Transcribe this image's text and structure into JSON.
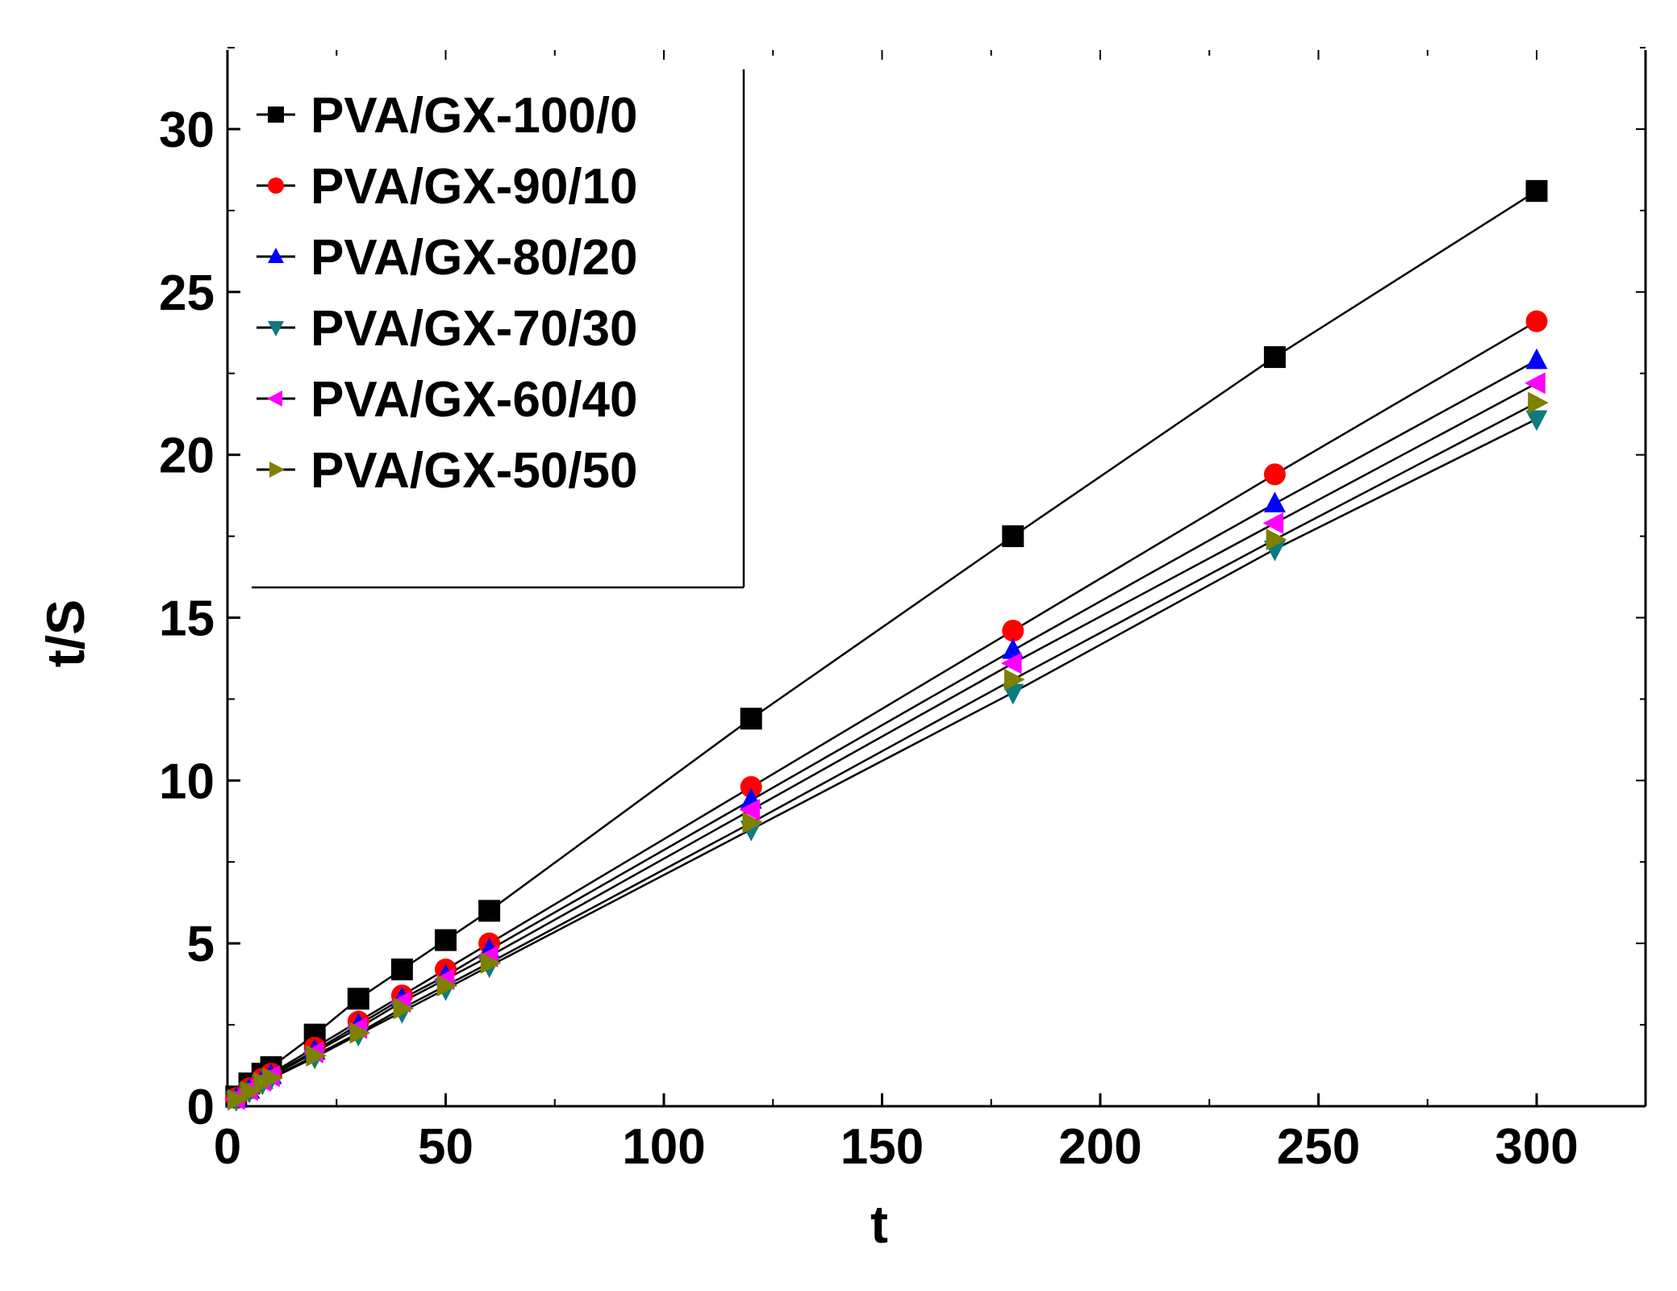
{
  "chart_data": {
    "type": "line",
    "title": "",
    "xlabel": "t",
    "ylabel": "t/S",
    "xlim": [
      0,
      325
    ],
    "ylim": [
      0,
      32.5
    ],
    "xticks": [
      0,
      50,
      100,
      150,
      200,
      250,
      300
    ],
    "yticks": [
      0,
      5,
      10,
      15,
      20,
      25,
      30
    ],
    "xtick_labels": [
      "0",
      "50",
      "100",
      "150",
      "200",
      "250",
      "300"
    ],
    "ytick_labels": [
      "0",
      "5",
      "10",
      "15",
      "20",
      "25",
      "30"
    ],
    "grid": false,
    "legend_position": "top-left",
    "x": [
      2,
      5,
      8,
      10,
      20,
      30,
      40,
      50,
      60,
      120,
      180,
      240,
      300
    ],
    "series": [
      {
        "name": "PVA/GX-100/0",
        "marker": "square",
        "color": "#000000",
        "values": [
          0.3,
          0.7,
          1.0,
          1.2,
          2.2,
          3.3,
          4.2,
          5.1,
          6.0,
          11.9,
          17.5,
          23.0,
          28.1
        ]
      },
      {
        "name": "PVA/GX-90/10",
        "marker": "circle",
        "color": "#ff0000",
        "values": [
          0.25,
          0.55,
          0.85,
          1.0,
          1.8,
          2.6,
          3.4,
          4.2,
          5.0,
          9.8,
          14.6,
          19.4,
          24.1
        ]
      },
      {
        "name": "PVA/GX-80/20",
        "marker": "triangle-up",
        "color": "#0000ff",
        "values": [
          0.22,
          0.5,
          0.8,
          0.95,
          1.7,
          2.5,
          3.3,
          4.0,
          4.8,
          9.4,
          14.0,
          18.5,
          22.9
        ]
      },
      {
        "name": "PVA/GX-70/30",
        "marker": "triangle-down",
        "color": "#0f7b80",
        "values": [
          0.2,
          0.45,
          0.7,
          0.85,
          1.5,
          2.2,
          2.9,
          3.6,
          4.3,
          8.5,
          12.7,
          17.1,
          21.1
        ]
      },
      {
        "name": "PVA/GX-60/40",
        "marker": "triangle-left",
        "color": "#ff00ff",
        "values": [
          0.22,
          0.5,
          0.78,
          0.92,
          1.65,
          2.4,
          3.2,
          3.9,
          4.6,
          9.1,
          13.6,
          17.9,
          22.2
        ]
      },
      {
        "name": "PVA/GX-50/50",
        "marker": "triangle-right",
        "color": "#7f7f00",
        "values": [
          0.2,
          0.45,
          0.72,
          0.86,
          1.55,
          2.25,
          3.0,
          3.7,
          4.4,
          8.7,
          13.1,
          17.4,
          21.6
        ]
      }
    ]
  }
}
